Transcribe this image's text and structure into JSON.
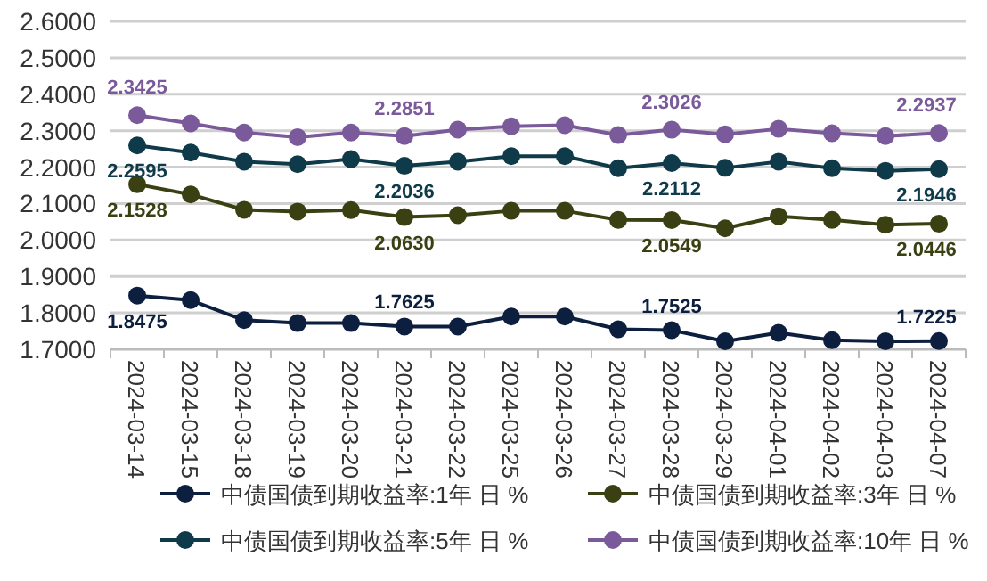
{
  "chart_data": {
    "type": "line",
    "categories": [
      "2024-03-14",
      "2024-03-15",
      "2024-03-18",
      "2024-03-19",
      "2024-03-20",
      "2024-03-21",
      "2024-03-22",
      "2024-03-25",
      "2024-03-26",
      "2024-03-27",
      "2024-03-28",
      "2024-03-29",
      "2024-04-01",
      "2024-04-02",
      "2024-04-03",
      "2024-04-07"
    ],
    "ylim": [
      1.7,
      2.6
    ],
    "yticks": [
      {
        "value": 1.7,
        "label": "1.7000"
      },
      {
        "value": 1.8,
        "label": "1.8000"
      },
      {
        "value": 1.9,
        "label": "1.9000"
      },
      {
        "value": 2.0,
        "label": "2.0000"
      },
      {
        "value": 2.1,
        "label": "2.1000"
      },
      {
        "value": 2.2,
        "label": "2.2000"
      },
      {
        "value": 2.3,
        "label": "2.3000"
      },
      {
        "value": 2.4,
        "label": "2.4000"
      },
      {
        "value": 2.5,
        "label": "2.5000"
      },
      {
        "value": 2.6,
        "label": "2.6000"
      }
    ],
    "grid": "y",
    "legend": "bottom",
    "marker": "circle",
    "line_style": "solid",
    "series": [
      {
        "name": "中债国债到期收益率:1年 日 %",
        "color": "#0d1f3f",
        "values": [
          1.8475,
          1.835,
          1.78,
          1.772,
          1.772,
          1.7625,
          1.7625,
          1.79,
          1.79,
          1.755,
          1.7525,
          1.722,
          1.745,
          1.725,
          1.722,
          1.7225
        ],
        "value_labels": [
          "1.8475",
          null,
          null,
          null,
          null,
          "1.7625",
          null,
          null,
          null,
          null,
          "1.7525",
          null,
          null,
          null,
          null,
          "1.7225"
        ]
      },
      {
        "name": "中债国债到期收益率:3年 日 %",
        "color": "#3a4012",
        "values": [
          2.1528,
          2.125,
          2.083,
          2.078,
          2.082,
          2.063,
          2.068,
          2.08,
          2.08,
          2.055,
          2.0549,
          2.032,
          2.065,
          2.055,
          2.042,
          2.0446
        ],
        "value_labels": [
          "2.1528",
          null,
          null,
          null,
          null,
          "2.0630",
          null,
          null,
          null,
          null,
          "2.0549",
          null,
          null,
          null,
          null,
          "2.0446"
        ]
      },
      {
        "name": "中债国债到期收益率:5年 日 %",
        "color": "#0f3a4a",
        "values": [
          2.2595,
          2.24,
          2.215,
          2.208,
          2.222,
          2.2036,
          2.215,
          2.23,
          2.23,
          2.197,
          2.2112,
          2.198,
          2.215,
          2.197,
          2.19,
          2.1946
        ],
        "value_labels": [
          "2.2595",
          null,
          null,
          null,
          null,
          "2.2036",
          null,
          null,
          null,
          null,
          "2.2112",
          null,
          null,
          null,
          null,
          "2.1946"
        ]
      },
      {
        "name": "中债国债到期收益率:10年 日 %",
        "color": "#7a5a9a",
        "values": [
          2.3425,
          2.32,
          2.295,
          2.282,
          2.295,
          2.2851,
          2.303,
          2.312,
          2.315,
          2.288,
          2.3026,
          2.29,
          2.305,
          2.293,
          2.285,
          2.2937
        ],
        "value_labels": [
          "2.3425",
          null,
          null,
          null,
          null,
          "2.2851",
          null,
          null,
          null,
          null,
          "2.3026",
          null,
          null,
          null,
          null,
          "2.2937"
        ]
      }
    ]
  }
}
